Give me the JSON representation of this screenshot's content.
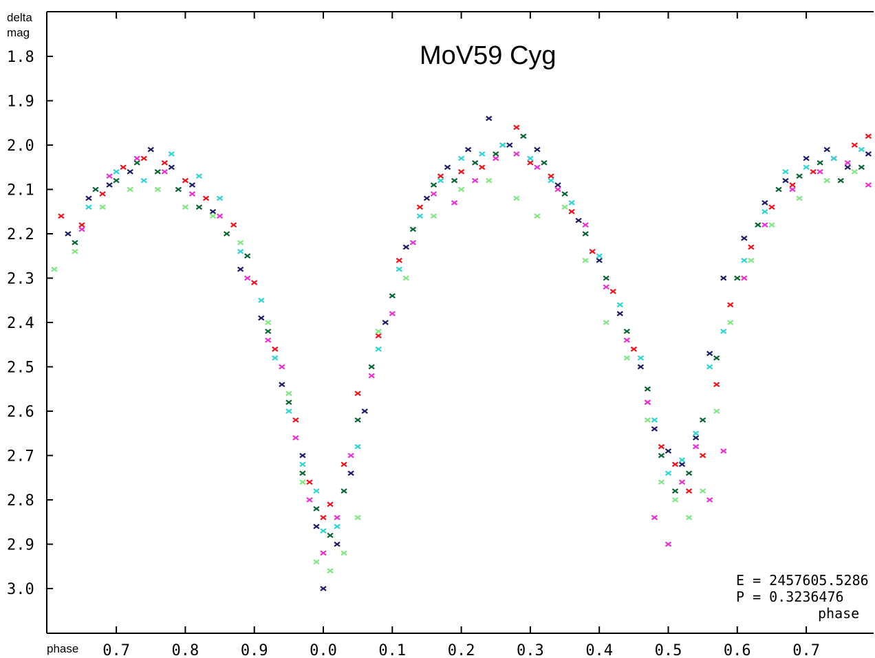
{
  "chart_data": {
    "type": "scatter",
    "title": "MoV59 Cyg",
    "ylabel_line1": "delta",
    "ylabel_line2": "mag",
    "xlabel_left": "phase",
    "xlabel_right": "phase",
    "y_inverted": true,
    "ylim": [
      1.7,
      3.1
    ],
    "xlim": [
      0.61,
      1.8
    ],
    "y_ticks": [
      {
        "value": 1.8,
        "label": "1.8"
      },
      {
        "value": 1.9,
        "label": "1.9"
      },
      {
        "value": 2.0,
        "label": "2.0"
      },
      {
        "value": 2.1,
        "label": "2.1"
      },
      {
        "value": 2.2,
        "label": "2.2"
      },
      {
        "value": 2.3,
        "label": "2.3"
      },
      {
        "value": 2.4,
        "label": "2.4"
      },
      {
        "value": 2.5,
        "label": "2.5"
      },
      {
        "value": 2.6,
        "label": "2.6"
      },
      {
        "value": 2.7,
        "label": "2.7"
      },
      {
        "value": 2.8,
        "label": "2.8"
      },
      {
        "value": 2.9,
        "label": "2.9"
      },
      {
        "value": 3.0,
        "label": "3.0"
      }
    ],
    "x_ticks": [
      {
        "value": 0.7,
        "label": "0.7"
      },
      {
        "value": 0.8,
        "label": "0.8"
      },
      {
        "value": 0.9,
        "label": "0.9"
      },
      {
        "value": 1.0,
        "label": "0.0"
      },
      {
        "value": 1.1,
        "label": "0.1"
      },
      {
        "value": 1.2,
        "label": "0.2"
      },
      {
        "value": 1.3,
        "label": "0.3"
      },
      {
        "value": 1.4,
        "label": "0.4"
      },
      {
        "value": 1.5,
        "label": "0.5"
      },
      {
        "value": 1.6,
        "label": "0.6"
      },
      {
        "value": 1.7,
        "label": "0.7"
      }
    ],
    "annotations": {
      "epoch": "E = 2457605.5286",
      "period": "P = 0.3236476"
    },
    "series": [
      {
        "color": "#e8141e",
        "points": [
          [
            0.62,
            2.16
          ],
          [
            0.65,
            2.18
          ],
          [
            0.68,
            2.11
          ],
          [
            0.71,
            2.05
          ],
          [
            0.74,
            2.03
          ],
          [
            0.77,
            2.04
          ],
          [
            0.8,
            2.08
          ],
          [
            0.83,
            2.12
          ],
          [
            0.87,
            2.18
          ],
          [
            0.9,
            2.31
          ],
          [
            0.93,
            2.46
          ],
          [
            0.96,
            2.62
          ],
          [
            0.98,
            2.76
          ],
          [
            1.0,
            2.84
          ],
          [
            1.01,
            2.81
          ],
          [
            1.03,
            2.72
          ],
          [
            1.05,
            2.56
          ],
          [
            1.08,
            2.43
          ],
          [
            1.11,
            2.26
          ],
          [
            1.14,
            2.14
          ],
          [
            1.17,
            2.07
          ],
          [
            1.2,
            2.06
          ],
          [
            1.23,
            2.05
          ],
          [
            1.26,
            2.0
          ],
          [
            1.28,
            1.96
          ],
          [
            1.3,
            2.04
          ],
          [
            1.33,
            2.07
          ],
          [
            1.36,
            2.15
          ],
          [
            1.39,
            2.24
          ],
          [
            1.42,
            2.33
          ],
          [
            1.45,
            2.46
          ],
          [
            1.47,
            2.58
          ],
          [
            1.49,
            2.68
          ],
          [
            1.51,
            2.72
          ],
          [
            1.53,
            2.78
          ],
          [
            1.55,
            2.7
          ],
          [
            1.57,
            2.54
          ],
          [
            1.59,
            2.36
          ],
          [
            1.62,
            2.23
          ],
          [
            1.65,
            2.14
          ],
          [
            1.68,
            2.09
          ],
          [
            1.71,
            2.06
          ],
          [
            1.74,
            2.03
          ],
          [
            1.77,
            2.0
          ],
          [
            1.79,
            1.98
          ]
        ]
      },
      {
        "color": "#1c1c64",
        "points": [
          [
            0.63,
            2.2
          ],
          [
            0.66,
            2.12
          ],
          [
            0.69,
            2.09
          ],
          [
            0.72,
            2.06
          ],
          [
            0.75,
            2.01
          ],
          [
            0.78,
            2.05
          ],
          [
            0.81,
            2.09
          ],
          [
            0.84,
            2.15
          ],
          [
            0.88,
            2.28
          ],
          [
            0.91,
            2.39
          ],
          [
            0.94,
            2.54
          ],
          [
            0.97,
            2.7
          ],
          [
            0.99,
            2.86
          ],
          [
            1.0,
            3.0
          ],
          [
            1.02,
            2.9
          ],
          [
            1.04,
            2.74
          ],
          [
            1.06,
            2.6
          ],
          [
            1.09,
            2.4
          ],
          [
            1.12,
            2.23
          ],
          [
            1.15,
            2.12
          ],
          [
            1.18,
            2.05
          ],
          [
            1.21,
            2.01
          ],
          [
            1.24,
            1.94
          ],
          [
            1.27,
            2.0
          ],
          [
            1.31,
            2.01
          ],
          [
            1.34,
            2.09
          ],
          [
            1.37,
            2.17
          ],
          [
            1.4,
            2.26
          ],
          [
            1.43,
            2.38
          ],
          [
            1.46,
            2.5
          ],
          [
            1.48,
            2.64
          ],
          [
            1.5,
            2.69
          ],
          [
            1.52,
            2.72
          ],
          [
            1.54,
            2.66
          ],
          [
            1.56,
            2.47
          ],
          [
            1.58,
            2.3
          ],
          [
            1.61,
            2.21
          ],
          [
            1.64,
            2.13
          ],
          [
            1.67,
            2.08
          ],
          [
            1.7,
            2.03
          ],
          [
            1.73,
            2.01
          ],
          [
            1.76,
            2.05
          ],
          [
            1.79,
            2.02
          ]
        ]
      },
      {
        "color": "#0a6432",
        "points": [
          [
            0.64,
            2.22
          ],
          [
            0.67,
            2.1
          ],
          [
            0.7,
            2.08
          ],
          [
            0.73,
            2.04
          ],
          [
            0.76,
            2.06
          ],
          [
            0.79,
            2.1
          ],
          [
            0.82,
            2.14
          ],
          [
            0.86,
            2.2
          ],
          [
            0.89,
            2.25
          ],
          [
            0.92,
            2.42
          ],
          [
            0.95,
            2.58
          ],
          [
            0.97,
            2.74
          ],
          [
            0.99,
            2.82
          ],
          [
            1.01,
            2.88
          ],
          [
            1.03,
            2.78
          ],
          [
            1.05,
            2.62
          ],
          [
            1.07,
            2.5
          ],
          [
            1.1,
            2.34
          ],
          [
            1.13,
            2.19
          ],
          [
            1.16,
            2.09
          ],
          [
            1.19,
            2.08
          ],
          [
            1.22,
            2.04
          ],
          [
            1.25,
            2.02
          ],
          [
            1.29,
            1.98
          ],
          [
            1.32,
            2.04
          ],
          [
            1.35,
            2.11
          ],
          [
            1.38,
            2.2
          ],
          [
            1.41,
            2.3
          ],
          [
            1.44,
            2.42
          ],
          [
            1.47,
            2.55
          ],
          [
            1.49,
            2.7
          ],
          [
            1.51,
            2.78
          ],
          [
            1.53,
            2.74
          ],
          [
            1.55,
            2.62
          ],
          [
            1.57,
            2.48
          ],
          [
            1.6,
            2.3
          ],
          [
            1.63,
            2.18
          ],
          [
            1.66,
            2.1
          ],
          [
            1.69,
            2.07
          ],
          [
            1.72,
            2.04
          ],
          [
            1.75,
            2.08
          ],
          [
            1.78,
            2.05
          ]
        ]
      },
      {
        "color": "#e632d2",
        "points": [
          [
            0.65,
            2.19
          ],
          [
            0.69,
            2.07
          ],
          [
            0.73,
            2.03
          ],
          [
            0.77,
            2.06
          ],
          [
            0.81,
            2.11
          ],
          [
            0.85,
            2.16
          ],
          [
            0.89,
            2.3
          ],
          [
            0.92,
            2.44
          ],
          [
            0.94,
            2.5
          ],
          [
            0.96,
            2.66
          ],
          [
            0.98,
            2.8
          ],
          [
            1.0,
            2.92
          ],
          [
            1.02,
            2.84
          ],
          [
            1.04,
            2.7
          ],
          [
            1.07,
            2.52
          ],
          [
            1.1,
            2.38
          ],
          [
            1.13,
            2.22
          ],
          [
            1.16,
            2.11
          ],
          [
            1.19,
            2.13
          ],
          [
            1.22,
            2.08
          ],
          [
            1.25,
            2.03
          ],
          [
            1.28,
            2.02
          ],
          [
            1.31,
            2.05
          ],
          [
            1.34,
            2.1
          ],
          [
            1.38,
            2.18
          ],
          [
            1.41,
            2.32
          ],
          [
            1.44,
            2.44
          ],
          [
            1.47,
            2.58
          ],
          [
            1.48,
            2.84
          ],
          [
            1.5,
            2.9
          ],
          [
            1.52,
            2.76
          ],
          [
            1.54,
            2.68
          ],
          [
            1.56,
            2.8
          ],
          [
            1.58,
            2.69
          ],
          [
            1.61,
            2.3
          ],
          [
            1.64,
            2.18
          ],
          [
            1.68,
            2.1
          ],
          [
            1.72,
            2.06
          ],
          [
            1.76,
            2.04
          ],
          [
            1.79,
            2.09
          ]
        ]
      },
      {
        "color": "#32d2d2",
        "points": [
          [
            0.66,
            2.14
          ],
          [
            0.7,
            2.06
          ],
          [
            0.74,
            2.08
          ],
          [
            0.78,
            2.02
          ],
          [
            0.82,
            2.07
          ],
          [
            0.85,
            2.12
          ],
          [
            0.88,
            2.24
          ],
          [
            0.91,
            2.35
          ],
          [
            0.93,
            2.48
          ],
          [
            0.95,
            2.6
          ],
          [
            0.97,
            2.72
          ],
          [
            0.99,
            2.78
          ],
          [
            1.0,
            2.87
          ],
          [
            1.02,
            2.86
          ],
          [
            1.05,
            2.68
          ],
          [
            1.08,
            2.46
          ],
          [
            1.11,
            2.28
          ],
          [
            1.14,
            2.16
          ],
          [
            1.17,
            2.08
          ],
          [
            1.2,
            2.03
          ],
          [
            1.23,
            2.02
          ],
          [
            1.26,
            2.0
          ],
          [
            1.3,
            2.03
          ],
          [
            1.33,
            2.08
          ],
          [
            1.36,
            2.13
          ],
          [
            1.4,
            2.25
          ],
          [
            1.43,
            2.36
          ],
          [
            1.46,
            2.48
          ],
          [
            1.48,
            2.62
          ],
          [
            1.5,
            2.74
          ],
          [
            1.52,
            2.71
          ],
          [
            1.54,
            2.65
          ],
          [
            1.56,
            2.5
          ],
          [
            1.58,
            2.42
          ],
          [
            1.61,
            2.26
          ],
          [
            1.64,
            2.15
          ],
          [
            1.67,
            2.06
          ],
          [
            1.7,
            2.05
          ],
          [
            1.74,
            2.03
          ],
          [
            1.78,
            2.01
          ]
        ]
      },
      {
        "color": "#82e682",
        "points": [
          [
            0.61,
            2.28
          ],
          [
            0.64,
            2.24
          ],
          [
            0.68,
            2.14
          ],
          [
            0.72,
            2.1
          ],
          [
            0.76,
            2.1
          ],
          [
            0.8,
            2.14
          ],
          [
            0.84,
            2.16
          ],
          [
            0.88,
            2.22
          ],
          [
            0.92,
            2.4
          ],
          [
            0.95,
            2.56
          ],
          [
            0.97,
            2.76
          ],
          [
            0.99,
            2.94
          ],
          [
            1.01,
            2.96
          ],
          [
            1.03,
            2.92
          ],
          [
            1.05,
            2.84
          ],
          [
            1.08,
            2.42
          ],
          [
            1.12,
            2.3
          ],
          [
            1.16,
            2.16
          ],
          [
            1.2,
            2.1
          ],
          [
            1.24,
            2.08
          ],
          [
            1.28,
            2.12
          ],
          [
            1.31,
            2.16
          ],
          [
            1.35,
            2.14
          ],
          [
            1.38,
            2.26
          ],
          [
            1.41,
            2.4
          ],
          [
            1.44,
            2.48
          ],
          [
            1.47,
            2.62
          ],
          [
            1.49,
            2.76
          ],
          [
            1.51,
            2.8
          ],
          [
            1.53,
            2.84
          ],
          [
            1.55,
            2.78
          ],
          [
            1.57,
            2.6
          ],
          [
            1.59,
            2.4
          ],
          [
            1.62,
            2.26
          ],
          [
            1.65,
            2.18
          ],
          [
            1.69,
            2.12
          ],
          [
            1.73,
            2.08
          ],
          [
            1.77,
            2.06
          ]
        ]
      }
    ]
  }
}
